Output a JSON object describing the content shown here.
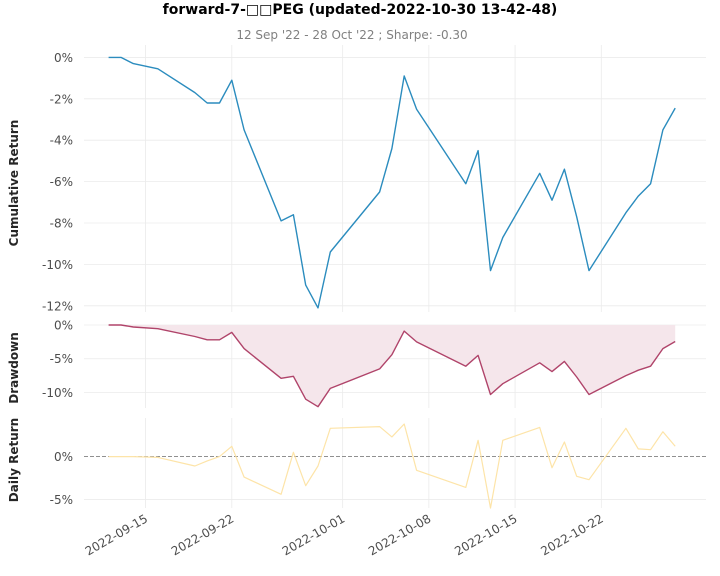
{
  "title": "forward-7-□□PEG (updated-2022-10-30 13-42-48)",
  "subtitle": "12 Sep '22 - 28 Oct '22 ;  Sharpe: -0.30",
  "x_tick_labels": [
    "2022-09-15",
    "2022-09-22",
    "2022-10-01",
    "2022-10-08",
    "2022-10-15",
    "2022-10-22"
  ],
  "colors": {
    "cumulative": "#2b8cbe",
    "drawdown": "#b0446a",
    "drawdown_fill": "#f5e6eb",
    "daily": "#fde4a8",
    "zero_line": "#808080"
  },
  "chart_data": [
    {
      "type": "line",
      "ylabel": "Cumulative Return",
      "ylim": [
        -12.3,
        0.6
      ],
      "y_ticks": [
        0,
        -2,
        -4,
        -6,
        -8,
        -10,
        -12
      ],
      "y_tick_labels": [
        "0%",
        "-2%",
        "-4%",
        "-6%",
        "-8%",
        "-10%",
        "-12%"
      ],
      "grid": true,
      "x": [
        "2022-09-12",
        "2022-09-13",
        "2022-09-14",
        "2022-09-16",
        "2022-09-19",
        "2022-09-20",
        "2022-09-21",
        "2022-09-22",
        "2022-09-23",
        "2022-09-26",
        "2022-09-27",
        "2022-09-28",
        "2022-09-29",
        "2022-09-30",
        "2022-10-04",
        "2022-10-05",
        "2022-10-06",
        "2022-10-07",
        "2022-10-11",
        "2022-10-12",
        "2022-10-13",
        "2022-10-14",
        "2022-10-17",
        "2022-10-18",
        "2022-10-19",
        "2022-10-20",
        "2022-10-21",
        "2022-10-24",
        "2022-10-25",
        "2022-10-26",
        "2022-10-27",
        "2022-10-28"
      ],
      "values": [
        0.0,
        0.0,
        -0.3,
        -0.55,
        -1.7,
        -2.2,
        -2.2,
        -1.1,
        -3.5,
        -7.9,
        -7.6,
        -11.0,
        -12.1,
        -9.4,
        -6.5,
        -4.4,
        -0.9,
        -2.5,
        -6.1,
        -4.5,
        -10.3,
        -8.7,
        -5.6,
        -6.9,
        -5.4,
        -7.7,
        -10.3,
        -7.5,
        -6.7,
        -6.1,
        -3.5,
        -2.45
      ]
    },
    {
      "type": "area",
      "ylabel": "Drawdown",
      "ylim": [
        -12.3,
        0.0
      ],
      "y_ticks": [
        0,
        -5,
        -10
      ],
      "y_tick_labels": [
        "0%",
        "-5%",
        "-10%"
      ],
      "grid": true,
      "x": [
        "2022-09-12",
        "2022-09-13",
        "2022-09-14",
        "2022-09-16",
        "2022-09-19",
        "2022-09-20",
        "2022-09-21",
        "2022-09-22",
        "2022-09-23",
        "2022-09-26",
        "2022-09-27",
        "2022-09-28",
        "2022-09-29",
        "2022-09-30",
        "2022-10-04",
        "2022-10-05",
        "2022-10-06",
        "2022-10-07",
        "2022-10-11",
        "2022-10-12",
        "2022-10-13",
        "2022-10-14",
        "2022-10-17",
        "2022-10-18",
        "2022-10-19",
        "2022-10-20",
        "2022-10-21",
        "2022-10-24",
        "2022-10-25",
        "2022-10-26",
        "2022-10-27",
        "2022-10-28"
      ],
      "values": [
        0.0,
        0.0,
        -0.3,
        -0.55,
        -1.7,
        -2.2,
        -2.2,
        -1.1,
        -3.5,
        -7.9,
        -7.6,
        -11.0,
        -12.1,
        -9.4,
        -6.5,
        -4.4,
        -0.9,
        -2.5,
        -6.1,
        -4.5,
        -10.3,
        -8.7,
        -5.6,
        -6.9,
        -5.4,
        -7.7,
        -10.3,
        -7.5,
        -6.7,
        -6.1,
        -3.5,
        -2.45
      ]
    },
    {
      "type": "line",
      "ylabel": "Daily Return",
      "ylim": [
        -6.0,
        4.5
      ],
      "y_ticks": [
        0,
        -5
      ],
      "y_tick_labels": [
        "0%",
        "-5%"
      ],
      "grid": true,
      "x": [
        "2022-09-12",
        "2022-09-13",
        "2022-09-14",
        "2022-09-16",
        "2022-09-19",
        "2022-09-20",
        "2022-09-21",
        "2022-09-22",
        "2022-09-23",
        "2022-09-26",
        "2022-09-27",
        "2022-09-28",
        "2022-09-29",
        "2022-09-30",
        "2022-10-04",
        "2022-10-05",
        "2022-10-06",
        "2022-10-07",
        "2022-10-11",
        "2022-10-12",
        "2022-10-13",
        "2022-10-14",
        "2022-10-17",
        "2022-10-18",
        "2022-10-19",
        "2022-10-20",
        "2022-10-21",
        "2022-10-24",
        "2022-10-25",
        "2022-10-26",
        "2022-10-27",
        "2022-10-28"
      ],
      "values": [
        0.0,
        0.0,
        0.0,
        -0.1,
        -1.1,
        -0.5,
        0.0,
        1.2,
        -2.4,
        -4.4,
        0.5,
        -3.4,
        -1.1,
        3.3,
        3.5,
        2.3,
        3.8,
        -1.6,
        -3.6,
        1.9,
        -6.0,
        1.9,
        3.4,
        -1.3,
        1.7,
        -2.3,
        -2.7,
        3.3,
        0.9,
        0.8,
        2.9,
        1.2
      ]
    }
  ]
}
